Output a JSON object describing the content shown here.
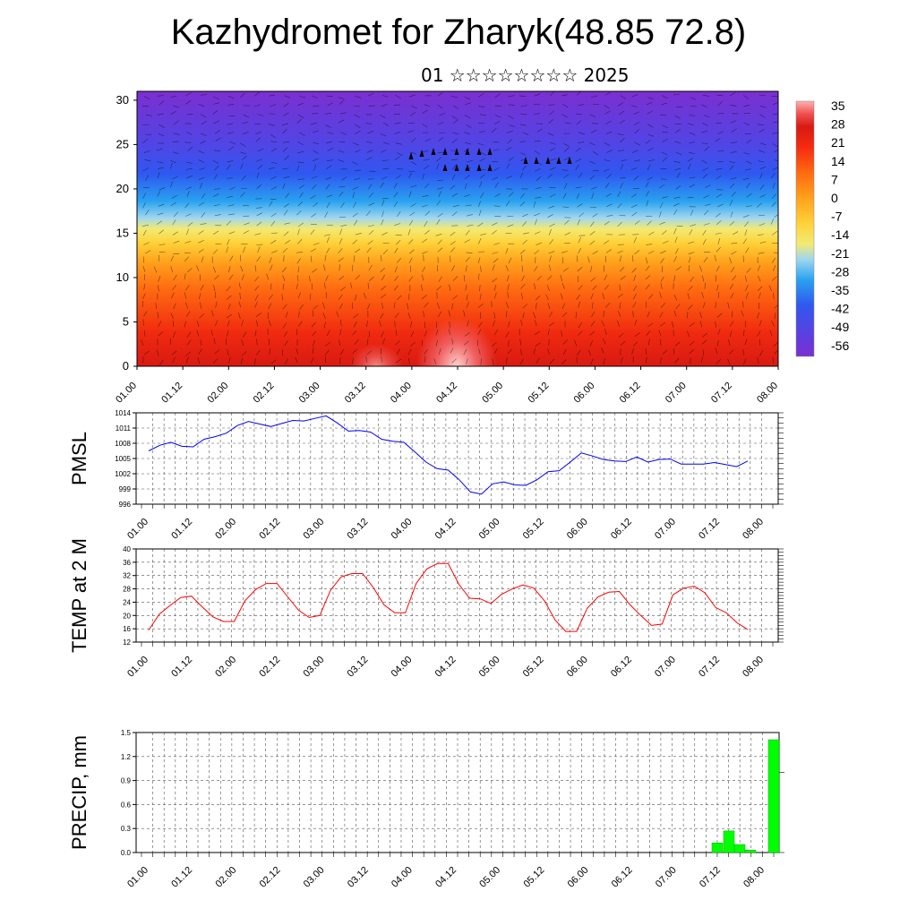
{
  "title": "Kazhydromet for Zharyk(48.85 72.8)",
  "subtitle": "01 ☆☆☆☆☆☆☆☆ 2025",
  "time_ticks": [
    "01.00",
    "01.12",
    "02.00",
    "02.12",
    "03.00",
    "03.12",
    "04.00",
    "04.12",
    "05.00",
    "05.12",
    "06.00",
    "06.12",
    "07.00",
    "07.12",
    "08.00"
  ],
  "chart_data": [
    {
      "type": "heatmap",
      "name": "cross-section",
      "y_ticks": [
        "0",
        "5",
        "10",
        "15",
        "20",
        "25",
        "30"
      ],
      "ylim": [
        0,
        31
      ],
      "colorbar_labels": [
        "35",
        "28",
        "21",
        "14",
        "7",
        "0",
        "-7",
        "-14",
        "-21",
        "-28",
        "-35",
        "-42",
        "-49",
        "-56"
      ],
      "colorbar_range": [
        -63,
        42
      ],
      "colors": [
        "#7b2fd0",
        "#4f46e6",
        "#2f58f0",
        "#2aa2f0",
        "#9fd6f0",
        "#f2ea74",
        "#ffd23a",
        "#ffa21c",
        "#ff6a10",
        "#f52a10",
        "#d81a12",
        "#f05050",
        "#ffb0b0"
      ]
    },
    {
      "type": "line",
      "ylabel": "PMSL",
      "y_ticks": [
        "1014",
        "1011",
        "1008",
        "1005",
        "1002",
        "999",
        "996"
      ],
      "ylim": [
        996,
        1014
      ],
      "color": "#0000ff",
      "values": [
        1006.5,
        1007.6,
        1008.2,
        1007.4,
        1007.3,
        1008.8,
        1009.3,
        1010.0,
        1011.5,
        1012.3,
        1011.8,
        1011.3,
        1011.9,
        1012.5,
        1012.4,
        1012.9,
        1013.4,
        1012.0,
        1010.4,
        1010.5,
        1010.2,
        1008.8,
        1008.4,
        1008.2,
        1006.3,
        1004.3,
        1003.0,
        1002.7,
        1000.8,
        998.4,
        998.0,
        1000.0,
        1000.4,
        999.8,
        999.7,
        1000.8,
        1002.4,
        1002.6,
        1004.3,
        1006.1,
        1005.5,
        1004.8,
        1004.5,
        1004.4,
        1005.3,
        1004.3,
        1004.8,
        1004.9,
        1003.9,
        1003.9,
        1003.9,
        1004.2,
        1003.8,
        1003.4,
        1004.5
      ]
    },
    {
      "type": "line",
      "ylabel": "TEMP at 2 M",
      "y_ticks": [
        "40",
        "36",
        "32",
        "28",
        "24",
        "20",
        "16",
        "12"
      ],
      "ylim": [
        12,
        40
      ],
      "color": "#ff0000",
      "values": [
        15.6,
        20.4,
        23.0,
        25.4,
        25.8,
        22.6,
        19.6,
        18.2,
        18.2,
        24.4,
        27.8,
        29.6,
        29.6,
        25.6,
        21.6,
        19.4,
        20.0,
        27.6,
        31.6,
        32.6,
        32.6,
        28.4,
        23.2,
        20.8,
        20.8,
        29.6,
        34.0,
        35.6,
        35.6,
        29.4,
        25.2,
        25.0,
        23.6,
        26.4,
        28.0,
        29.2,
        28.2,
        24.4,
        18.6,
        15.2,
        15.2,
        22.2,
        25.6,
        27.0,
        27.2,
        23.2,
        20.0,
        17.0,
        17.4,
        26.2,
        28.2,
        28.8,
        26.8,
        22.4,
        20.8,
        17.8,
        15.8
      ]
    },
    {
      "type": "bar",
      "ylabel": "PRECIP, mm",
      "y_ticks": [
        "1.5",
        "1.2",
        "0.9",
        "0.6",
        "0.3",
        "0.0"
      ],
      "ylim": [
        0,
        1.5
      ],
      "color": "#00ff00",
      "values": [
        0.12,
        0.27,
        0.1,
        0.03,
        0.0,
        1.41
      ]
    }
  ]
}
